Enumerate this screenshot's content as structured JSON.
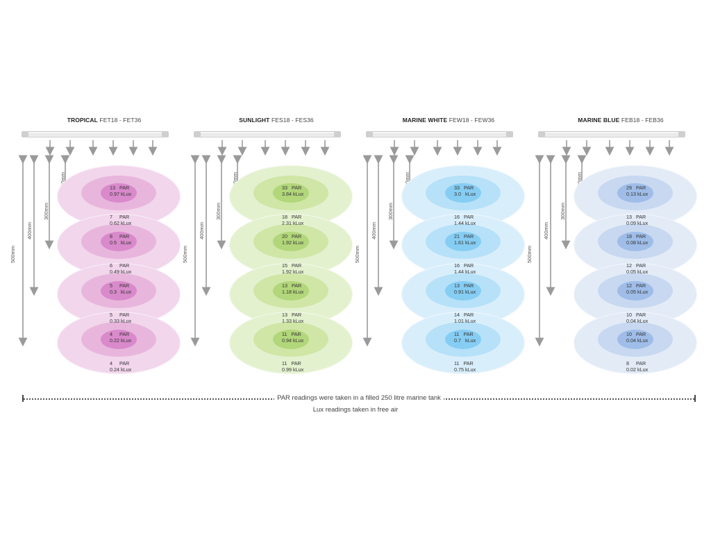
{
  "palette": {
    "tropical": {
      "outer": "#f2d6ec",
      "mid": "#e8b6dd",
      "inner": "#d98acb"
    },
    "sunlight": {
      "outer": "#e4f1cf",
      "mid": "#cfe6a6",
      "inner": "#b2d67a"
    },
    "marine_white": {
      "outer": "#d9eefb",
      "mid": "#b6e1f8",
      "inner": "#86cdf3"
    },
    "marine_blue": {
      "outer": "#e3ebf7",
      "mid": "#c7d8f0",
      "inner": "#9fbde8"
    },
    "arrow": "#9a9a9a"
  },
  "panels": [
    {
      "key": "tropical",
      "title_strong": "TROPICAL",
      "title_models": "FET18 - FET36",
      "dims": [
        "200mm",
        "300mm",
        "400mm",
        "500mm"
      ],
      "levels": [
        {
          "inner": [
            "13   PAR",
            "0.97 kLux"
          ],
          "outer": [
            "7     PAR",
            "0.62 kLux"
          ]
        },
        {
          "inner": [
            "8     PAR",
            "0.5   kLux"
          ],
          "outer": [
            "6     PAR",
            "0.49 kLux"
          ]
        },
        {
          "inner": [
            "5     PAR",
            "0.3   kLux"
          ],
          "outer": [
            "5     PAR",
            "0.33 kLux"
          ]
        },
        {
          "inner": [
            "4     PAR",
            "0.22 kLux"
          ],
          "outer": [
            "4     PAR",
            "0.24 kLux"
          ]
        }
      ]
    },
    {
      "key": "sunlight",
      "title_strong": "SUNLIGHT",
      "title_models": "FES18 - FES36",
      "dims": [
        "200mm",
        "300mm",
        "400mm",
        "500mm"
      ],
      "levels": [
        {
          "inner": [
            "33   PAR",
            "3.84 kLux"
          ],
          "outer": [
            "18   PAR",
            "2.31 kLux"
          ]
        },
        {
          "inner": [
            "20   PAR",
            "1.92 kLux"
          ],
          "outer": [
            "15   PAR",
            "1.92 kLux"
          ]
        },
        {
          "inner": [
            "13   PAR",
            "1.18 kLux"
          ],
          "outer": [
            "13   PAR",
            "1.33 kLux"
          ]
        },
        {
          "inner": [
            "11   PAR",
            "0.94 kLux"
          ],
          "outer": [
            "11   PAR",
            "0.99 kLux"
          ]
        }
      ]
    },
    {
      "key": "marine_white",
      "title_strong": "MARINE WHITE",
      "title_models": "FEW18 - FEW36",
      "dims": [
        "200mm",
        "300mm",
        "400mm",
        "500mm"
      ],
      "levels": [
        {
          "inner": [
            "33   PAR",
            "3.0   kLux"
          ],
          "outer": [
            "16   PAR",
            "1.44 kLux"
          ]
        },
        {
          "inner": [
            "21   PAR",
            "1.61 kLux"
          ],
          "outer": [
            "16   PAR",
            "1.44 kLux"
          ]
        },
        {
          "inner": [
            "13   PAR",
            "0.91 kLux"
          ],
          "outer": [
            "14   PAR",
            "1.01 kLux"
          ]
        },
        {
          "inner": [
            "11   PAR",
            "0.7   kLux"
          ],
          "outer": [
            "11   PAR",
            "0.75 kLux"
          ]
        }
      ]
    },
    {
      "key": "marine_blue",
      "title_strong": "MARINE BLUE",
      "title_models": "FEB18 - FEB36",
      "dims": [
        "200mm",
        "300mm",
        "400mm",
        "500mm"
      ],
      "levels": [
        {
          "inner": [
            "29   PAR",
            "0.13 kLux"
          ],
          "outer": [
            "13   PAR",
            "0.09 kLux"
          ]
        },
        {
          "inner": [
            "18   PAR",
            "0.08 kLux"
          ],
          "outer": [
            "12   PAR",
            "0.05 kLux"
          ]
        },
        {
          "inner": [
            "12   PAR",
            "0.05 kLux"
          ],
          "outer": [
            "10   PAR",
            "0.04 kLux"
          ]
        },
        {
          "inner": [
            "10   PAR",
            "0.04 kLux"
          ],
          "outer": [
            "8     PAR",
            "0.02 kLux"
          ]
        }
      ]
    }
  ],
  "footer": {
    "note_1": "PAR readings were taken in a filled 250 litre marine tank",
    "note_2": "Lux readings taken in free air"
  }
}
